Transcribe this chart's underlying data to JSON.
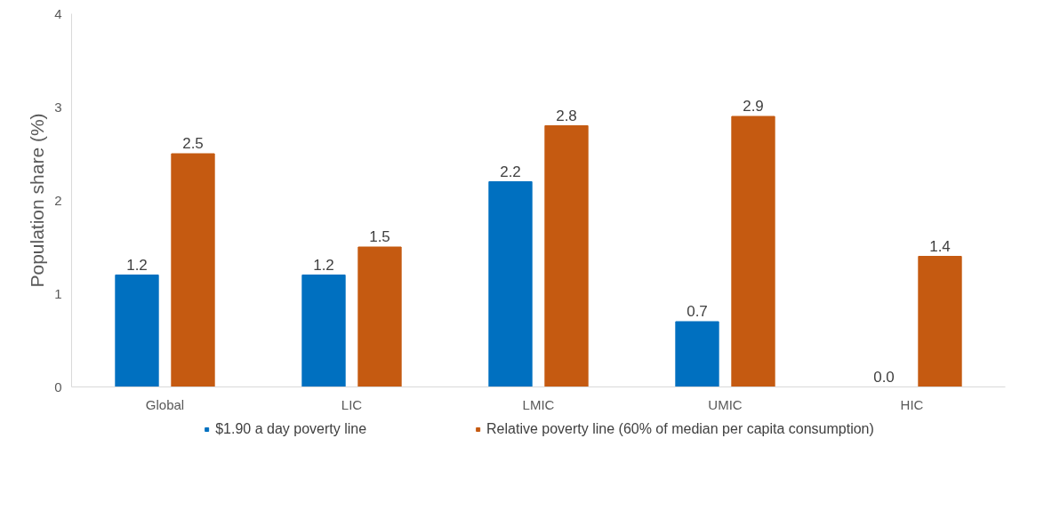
{
  "chart_data": {
    "type": "bar",
    "ylabel": "Population share (%)",
    "categories": [
      "Global",
      "LIC",
      "LMIC",
      "UMIC",
      "HIC"
    ],
    "series": [
      {
        "name": "$1.90 a day poverty line",
        "color": "#0070c0",
        "values": [
          1.2,
          1.2,
          2.2,
          0.7,
          0.0
        ],
        "value_labels": [
          "1.2",
          "1.2",
          "2.2",
          "0.7",
          "0.0"
        ]
      },
      {
        "name": "Relative poverty line (60% of median per capita consumption)",
        "color": "#c55a11",
        "values": [
          2.5,
          1.5,
          2.8,
          2.9,
          1.4
        ],
        "value_labels": [
          "2.5",
          "1.5",
          "2.8",
          "2.9",
          "1.4"
        ]
      }
    ],
    "ylim": [
      0,
      4
    ],
    "yticks": [
      0,
      1,
      2,
      3,
      4
    ],
    "grid": false,
    "legend": "bottom",
    "data_labels": true
  }
}
